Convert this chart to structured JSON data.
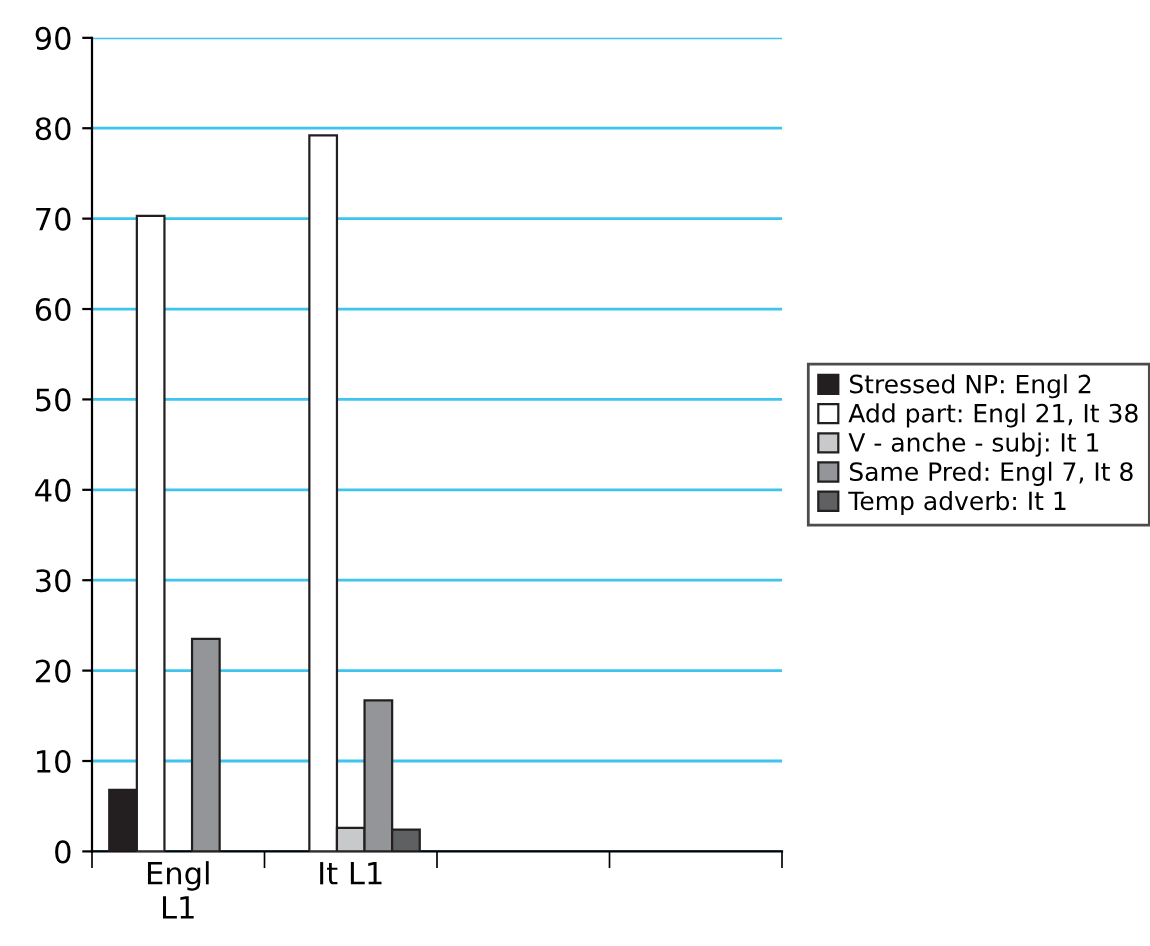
{
  "chart_data": {
    "type": "bar",
    "categories": [
      "Engl\nL1",
      "It L1",
      null,
      null
    ],
    "series": [
      {
        "name": "Stressed NP: Engl 2",
        "color": "#231f20",
        "values": [
          6.8,
          null,
          null,
          null
        ]
      },
      {
        "name": "Add part: Engl 21, It 38",
        "color": "#ffffff",
        "values": [
          70.3,
          79.2,
          null,
          null
        ]
      },
      {
        "name": "V - anche - subj: It 1",
        "color": "#c8c9cb",
        "values": [
          null,
          2.6,
          null,
          null
        ]
      },
      {
        "name": "Same Pred: Engl 7, It 8",
        "color": "#939598",
        "values": [
          23.5,
          16.7,
          null,
          null
        ]
      },
      {
        "name": "Temp adverb: It 1",
        "color": "#5f6062",
        "values": [
          null,
          2.4,
          null,
          null
        ]
      }
    ],
    "ylim": [
      0,
      90
    ],
    "yticks": [
      0,
      10,
      20,
      30,
      40,
      50,
      60,
      70,
      80,
      90
    ],
    "grid": "y",
    "legend": "right"
  }
}
